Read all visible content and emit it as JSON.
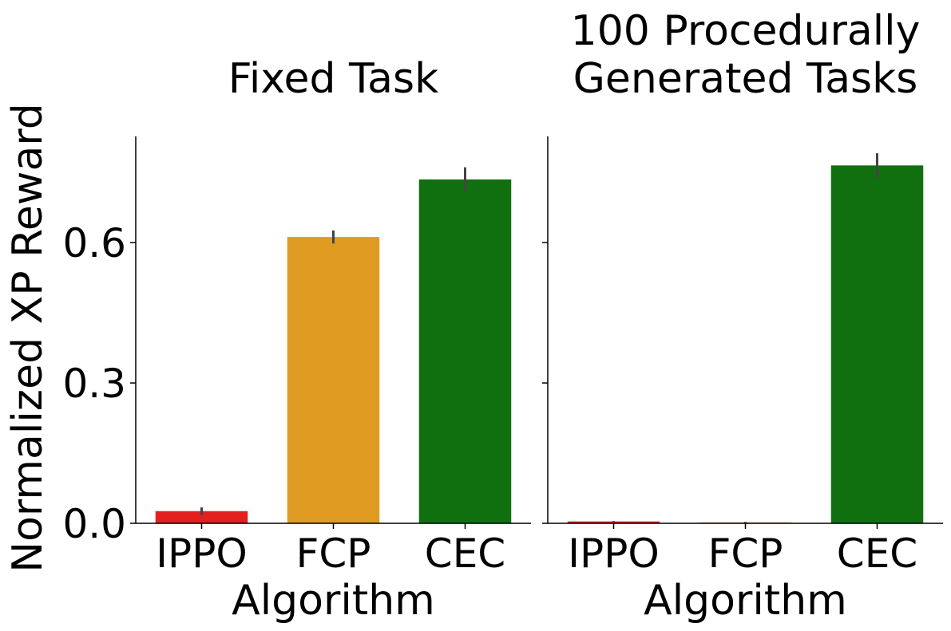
{
  "chart_data": [
    {
      "type": "bar",
      "title": "Fixed Task",
      "x_label": "Algorithm",
      "y_label": "Normalized XP Reward",
      "categories": [
        "IPPO",
        "FCP",
        "CEC"
      ],
      "values": [
        0.026,
        0.612,
        0.735
      ],
      "errors": [
        0.008,
        0.014,
        0.026
      ],
      "colors": [
        "#e31f1f",
        "#e09c22",
        "#107010"
      ],
      "ylim": [
        0,
        0.827
      ],
      "yticks": [
        {
          "value": 0,
          "label": "0.0"
        },
        0.3,
        0.6
      ],
      "show_ytick_labels": true
    },
    {
      "type": "bar",
      "title": "100 Procedurally\nGenerated Tasks",
      "x_label": "Algorithm",
      "categories": [
        "IPPO",
        "FCP",
        "CEC"
      ],
      "values": [
        0.004,
        0.002,
        0.765
      ],
      "errors": [
        0.001,
        0.001,
        0.026
      ],
      "colors": [
        "#e31f1f",
        "#e09c22",
        "#107010"
      ],
      "ylim": [
        0,
        0.827
      ],
      "yticks": [
        {
          "value": 0,
          "label": "0.0"
        },
        0.3,
        0.6
      ],
      "show_ytick_labels": false
    }
  ]
}
